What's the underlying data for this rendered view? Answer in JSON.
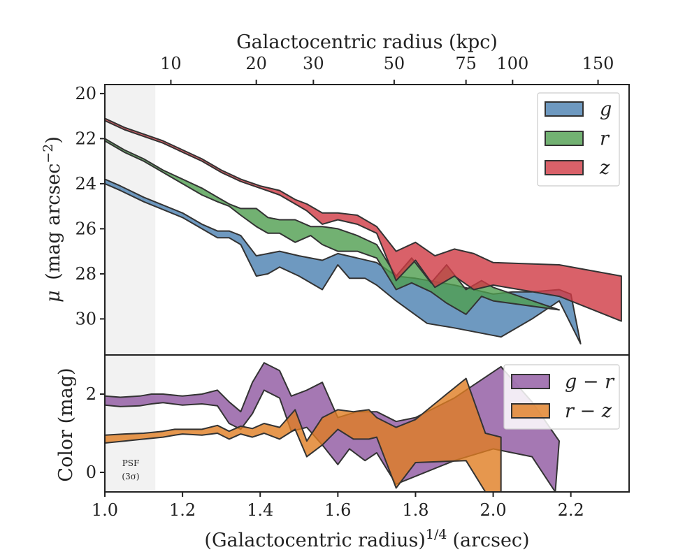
{
  "colors": {
    "g": "#4a7fb0",
    "r": "#4f9e4f",
    "z": "#d03a44",
    "g_r": "#8e56a0",
    "r_z": "#e07d22",
    "edge": "#333333",
    "psf_shade": "#f2f2f2"
  },
  "annotations": {
    "psf_line1": "PSF",
    "psf_line2": "(3σ)"
  },
  "chart_data": [
    {
      "type": "area",
      "panel": "top",
      "xlabel": "(Galactocentric radius)^1/4 (arcsec)",
      "xlabel_main": "(Galactocentric radius)",
      "xlabel_sup": "1/4",
      "xlabel_unit": "(arcsec)",
      "ylabel": "μ (mag arcsec−2)",
      "ylabel_mu": "μ",
      "ylabel_main": "(mag arcsec",
      "ylabel_sup": "−2",
      "ylabel_close": ")",
      "secondary_xlabel": "Galactocentric radius (kpc)",
      "xlim": [
        1.0,
        2.35
      ],
      "ylim": [
        31.6,
        19.6
      ],
      "y_inverted": true,
      "yticks": [
        20,
        22,
        24,
        26,
        28,
        30
      ],
      "xticks": [
        1.0,
        1.2,
        1.4,
        1.6,
        1.8,
        2.0,
        2.2
      ],
      "xtick_labels": [
        "1.0",
        "1.2",
        "1.4",
        "1.6",
        "1.8",
        "2.0",
        "2.2"
      ],
      "secondary_xticks": [
        {
          "label": "10",
          "x": 1.17
        },
        {
          "label": "20",
          "x": 1.39
        },
        {
          "label": "30",
          "x": 1.537
        },
        {
          "label": "50",
          "x": 1.745
        },
        {
          "label": "75",
          "x": 1.93
        },
        {
          "label": "100",
          "x": 2.05
        },
        {
          "label": "150",
          "x": 2.27
        }
      ],
      "psf_region": [
        1.0,
        1.13
      ],
      "legend": {
        "location": "upper right",
        "entries": [
          "g",
          "r",
          "z"
        ]
      },
      "series": [
        {
          "name": "g",
          "color_key": "g",
          "upper": [
            [
              1.0,
              23.8
            ],
            [
              1.04,
              24.1
            ],
            [
              1.1,
              24.6
            ],
            [
              1.2,
              25.3
            ],
            [
              1.25,
              25.8
            ],
            [
              1.29,
              26.1
            ],
            [
              1.32,
              26.1
            ],
            [
              1.35,
              26.3
            ],
            [
              1.39,
              27.2
            ],
            [
              1.42,
              27.1
            ],
            [
              1.45,
              27.0
            ],
            [
              1.5,
              27.2
            ],
            [
              1.56,
              27.4
            ],
            [
              1.6,
              27.1
            ],
            [
              1.65,
              27.3
            ],
            [
              1.7,
              27.5
            ],
            [
              1.75,
              28.1
            ],
            [
              1.8,
              28.2
            ],
            [
              1.9,
              28.5
            ],
            [
              2.0,
              28.9
            ],
            [
              2.05,
              28.8
            ],
            [
              2.1,
              28.8
            ],
            [
              2.17,
              28.7
            ],
            [
              2.2,
              28.9
            ],
            [
              2.225,
              31.1
            ]
          ],
          "lower": [
            [
              1.0,
              24.0
            ],
            [
              1.04,
              24.3
            ],
            [
              1.1,
              24.8
            ],
            [
              1.2,
              25.5
            ],
            [
              1.25,
              26.0
            ],
            [
              1.29,
              26.4
            ],
            [
              1.32,
              26.4
            ],
            [
              1.35,
              26.7
            ],
            [
              1.39,
              28.1
            ],
            [
              1.42,
              28.0
            ],
            [
              1.45,
              27.7
            ],
            [
              1.5,
              28.1
            ],
            [
              1.56,
              28.7
            ],
            [
              1.6,
              27.6
            ],
            [
              1.63,
              28.2
            ],
            [
              1.67,
              28.2
            ],
            [
              1.7,
              28.5
            ],
            [
              1.75,
              29.2
            ],
            [
              1.83,
              30.2
            ],
            [
              1.9,
              30.4
            ],
            [
              2.02,
              30.8
            ],
            [
              2.1,
              30.0
            ],
            [
              2.17,
              29.2
            ]
          ]
        },
        {
          "name": "r",
          "color_key": "r",
          "upper": [
            [
              1.0,
              22.0
            ],
            [
              1.05,
              22.5
            ],
            [
              1.1,
              22.9
            ],
            [
              1.15,
              23.4
            ],
            [
              1.2,
              23.8
            ],
            [
              1.25,
              24.2
            ],
            [
              1.29,
              24.6
            ],
            [
              1.32,
              24.9
            ],
            [
              1.35,
              25.1
            ],
            [
              1.39,
              25.1
            ],
            [
              1.42,
              25.5
            ],
            [
              1.45,
              25.6
            ],
            [
              1.49,
              25.6
            ],
            [
              1.53,
              25.9
            ],
            [
              1.56,
              25.9
            ],
            [
              1.6,
              26.0
            ],
            [
              1.65,
              26.3
            ],
            [
              1.7,
              26.7
            ],
            [
              1.75,
              28.1
            ],
            [
              1.79,
              27.3
            ],
            [
              1.84,
              28.4
            ],
            [
              1.88,
              27.6
            ],
            [
              1.93,
              28.7
            ],
            [
              1.97,
              28.3
            ],
            [
              2.0,
              28.6
            ],
            [
              2.17,
              29.6
            ]
          ],
          "lower": [
            [
              1.0,
              22.1
            ],
            [
              1.05,
              22.6
            ],
            [
              1.1,
              23.0
            ],
            [
              1.15,
              23.5
            ],
            [
              1.2,
              24.0
            ],
            [
              1.25,
              24.5
            ],
            [
              1.29,
              24.8
            ],
            [
              1.32,
              25.0
            ],
            [
              1.35,
              25.4
            ],
            [
              1.39,
              25.9
            ],
            [
              1.42,
              26.2
            ],
            [
              1.45,
              26.2
            ],
            [
              1.49,
              26.6
            ],
            [
              1.53,
              26.3
            ],
            [
              1.56,
              26.7
            ],
            [
              1.6,
              27.0
            ],
            [
              1.65,
              27.0
            ],
            [
              1.7,
              27.3
            ],
            [
              1.75,
              28.7
            ],
            [
              1.79,
              28.4
            ],
            [
              1.84,
              28.8
            ],
            [
              1.88,
              29.3
            ],
            [
              1.93,
              29.8
            ],
            [
              1.97,
              29.0
            ],
            [
              2.0,
              29.2
            ],
            [
              2.17,
              29.6
            ]
          ]
        },
        {
          "name": "z",
          "color_key": "z",
          "upper": [
            [
              1.0,
              21.1
            ],
            [
              1.05,
              21.5
            ],
            [
              1.1,
              21.8
            ],
            [
              1.15,
              22.1
            ],
            [
              1.2,
              22.5
            ],
            [
              1.25,
              22.9
            ],
            [
              1.3,
              23.4
            ],
            [
              1.35,
              23.8
            ],
            [
              1.4,
              24.1
            ],
            [
              1.45,
              24.3
            ],
            [
              1.49,
              24.7
            ],
            [
              1.52,
              24.9
            ],
            [
              1.56,
              25.3
            ],
            [
              1.6,
              25.3
            ],
            [
              1.65,
              25.4
            ],
            [
              1.7,
              25.9
            ],
            [
              1.75,
              27.0
            ],
            [
              1.8,
              26.6
            ],
            [
              1.85,
              27.2
            ],
            [
              1.9,
              26.9
            ],
            [
              1.95,
              27.1
            ],
            [
              2.0,
              27.5
            ],
            [
              2.17,
              27.6
            ],
            [
              2.33,
              28.1
            ]
          ],
          "lower": [
            [
              1.0,
              21.2
            ],
            [
              1.05,
              21.6
            ],
            [
              1.1,
              21.9
            ],
            [
              1.15,
              22.2
            ],
            [
              1.2,
              22.6
            ],
            [
              1.25,
              23.0
            ],
            [
              1.3,
              23.5
            ],
            [
              1.35,
              23.9
            ],
            [
              1.4,
              24.2
            ],
            [
              1.45,
              24.5
            ],
            [
              1.49,
              24.9
            ],
            [
              1.52,
              25.2
            ],
            [
              1.56,
              25.8
            ],
            [
              1.6,
              25.6
            ],
            [
              1.65,
              25.8
            ],
            [
              1.7,
              26.2
            ],
            [
              1.75,
              28.3
            ],
            [
              1.8,
              27.4
            ],
            [
              1.85,
              28.6
            ],
            [
              1.9,
              28.1
            ],
            [
              1.95,
              28.7
            ],
            [
              2.0,
              28.5
            ],
            [
              2.17,
              29.0
            ],
            [
              2.33,
              30.1
            ]
          ]
        }
      ]
    },
    {
      "type": "area",
      "panel": "bottom",
      "ylabel": "Color (mag)",
      "xlim": [
        1.0,
        2.35
      ],
      "ylim": [
        -0.5,
        3.0
      ],
      "yticks": [
        0,
        2
      ],
      "legend": {
        "location": "upper right",
        "entries": [
          "g − r",
          "r − z"
        ]
      },
      "series": [
        {
          "name": "g − r",
          "color_key": "g_r",
          "upper": [
            [
              1.0,
              1.95
            ],
            [
              1.04,
              1.92
            ],
            [
              1.09,
              1.95
            ],
            [
              1.12,
              2.0
            ],
            [
              1.15,
              2.0
            ],
            [
              1.2,
              1.95
            ],
            [
              1.25,
              2.0
            ],
            [
              1.29,
              2.1
            ],
            [
              1.32,
              1.8
            ],
            [
              1.35,
              1.55
            ],
            [
              1.38,
              2.3
            ],
            [
              1.41,
              2.8
            ],
            [
              1.45,
              2.6
            ],
            [
              1.48,
              1.95
            ],
            [
              1.52,
              2.1
            ],
            [
              1.56,
              2.3
            ],
            [
              1.6,
              1.4
            ],
            [
              1.65,
              1.55
            ],
            [
              1.7,
              1.55
            ],
            [
              1.75,
              1.3
            ],
            [
              1.8,
              1.4
            ],
            [
              1.9,
              1.9
            ],
            [
              2.02,
              2.7
            ],
            [
              2.1,
              1.8
            ],
            [
              2.17,
              0.8
            ]
          ],
          "lower": [
            [
              1.0,
              1.72
            ],
            [
              1.04,
              1.68
            ],
            [
              1.09,
              1.7
            ],
            [
              1.12,
              1.75
            ],
            [
              1.15,
              1.78
            ],
            [
              1.2,
              1.72
            ],
            [
              1.25,
              1.75
            ],
            [
              1.29,
              1.7
            ],
            [
              1.32,
              1.25
            ],
            [
              1.35,
              1.1
            ],
            [
              1.38,
              1.5
            ],
            [
              1.41,
              2.1
            ],
            [
              1.45,
              1.9
            ],
            [
              1.48,
              1.05
            ],
            [
              1.52,
              1.15
            ],
            [
              1.56,
              0.7
            ],
            [
              1.6,
              0.2
            ],
            [
              1.63,
              0.6
            ],
            [
              1.67,
              0.3
            ],
            [
              1.7,
              0.5
            ],
            [
              1.75,
              -0.3
            ],
            [
              1.9,
              0.3
            ],
            [
              2.0,
              0.6
            ],
            [
              2.1,
              0.4
            ],
            [
              2.16,
              -0.5
            ]
          ]
        },
        {
          "name": "r − z",
          "color_key": "r_z",
          "upper": [
            [
              1.0,
              0.95
            ],
            [
              1.05,
              0.98
            ],
            [
              1.1,
              1.0
            ],
            [
              1.15,
              1.05
            ],
            [
              1.18,
              1.1
            ],
            [
              1.2,
              1.1
            ],
            [
              1.25,
              1.1
            ],
            [
              1.29,
              1.2
            ],
            [
              1.32,
              1.05
            ],
            [
              1.35,
              1.18
            ],
            [
              1.38,
              1.12
            ],
            [
              1.41,
              1.25
            ],
            [
              1.45,
              1.15
            ],
            [
              1.49,
              1.6
            ],
            [
              1.52,
              0.8
            ],
            [
              1.56,
              1.4
            ],
            [
              1.6,
              1.6
            ],
            [
              1.64,
              1.55
            ],
            [
              1.68,
              1.6
            ],
            [
              1.7,
              1.4
            ],
            [
              1.75,
              1.15
            ],
            [
              1.8,
              1.35
            ],
            [
              1.88,
              2.0
            ],
            [
              1.93,
              2.4
            ],
            [
              1.98,
              1.0
            ],
            [
              2.02,
              0.9
            ]
          ],
          "lower": [
            [
              1.0,
              0.75
            ],
            [
              1.05,
              0.8
            ],
            [
              1.1,
              0.85
            ],
            [
              1.15,
              0.9
            ],
            [
              1.18,
              0.95
            ],
            [
              1.2,
              0.98
            ],
            [
              1.25,
              0.95
            ],
            [
              1.29,
              1.0
            ],
            [
              1.32,
              0.85
            ],
            [
              1.35,
              0.98
            ],
            [
              1.38,
              0.9
            ],
            [
              1.41,
              1.0
            ],
            [
              1.45,
              0.85
            ],
            [
              1.49,
              1.1
            ],
            [
              1.52,
              0.4
            ],
            [
              1.56,
              0.7
            ],
            [
              1.6,
              1.1
            ],
            [
              1.64,
              0.85
            ],
            [
              1.68,
              0.85
            ],
            [
              1.7,
              0.9
            ],
            [
              1.75,
              -0.4
            ],
            [
              1.8,
              0.25
            ],
            [
              1.93,
              0.3
            ],
            [
              1.98,
              -0.5
            ],
            [
              2.02,
              -0.5
            ]
          ]
        }
      ]
    }
  ]
}
